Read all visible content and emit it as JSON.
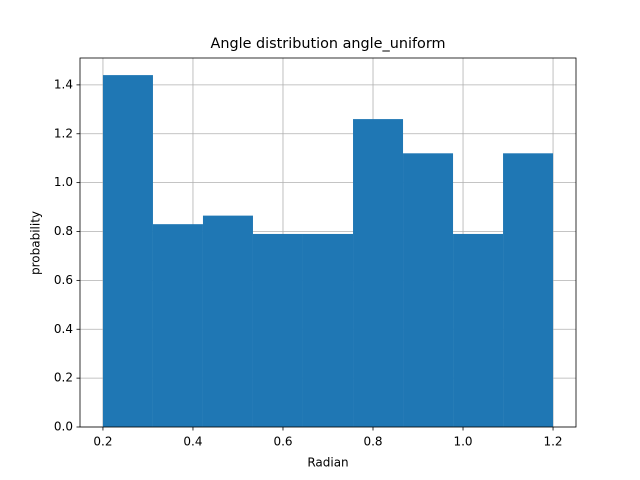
{
  "chart_data": {
    "type": "histogram",
    "title": "Angle distribution angle_uniform",
    "x_label": "Radian",
    "y_label": "probability",
    "bins": [
      0.2,
      0.3111,
      0.4222,
      0.5333,
      0.6444,
      0.7556,
      0.8667,
      0.9778,
      1.0889,
      1.2
    ],
    "values": [
      1.44,
      0.83,
      0.865,
      0.79,
      0.79,
      1.26,
      1.12,
      0.79,
      1.12
    ],
    "color": "#1f77b4",
    "xlim": [
      0.149,
      1.251
    ],
    "ylim": [
      0,
      1.51
    ],
    "xticks": [
      0.2,
      0.4,
      0.6,
      0.8,
      {
        "value": 1,
        "label": "1.0"
      },
      1.2
    ],
    "yticks": [
      {
        "value": 0,
        "label": "0.0"
      },
      0.2,
      0.4,
      0.6,
      0.8,
      {
        "value": 1,
        "label": "1.0"
      },
      1.2,
      1.4
    ],
    "grid": true
  }
}
